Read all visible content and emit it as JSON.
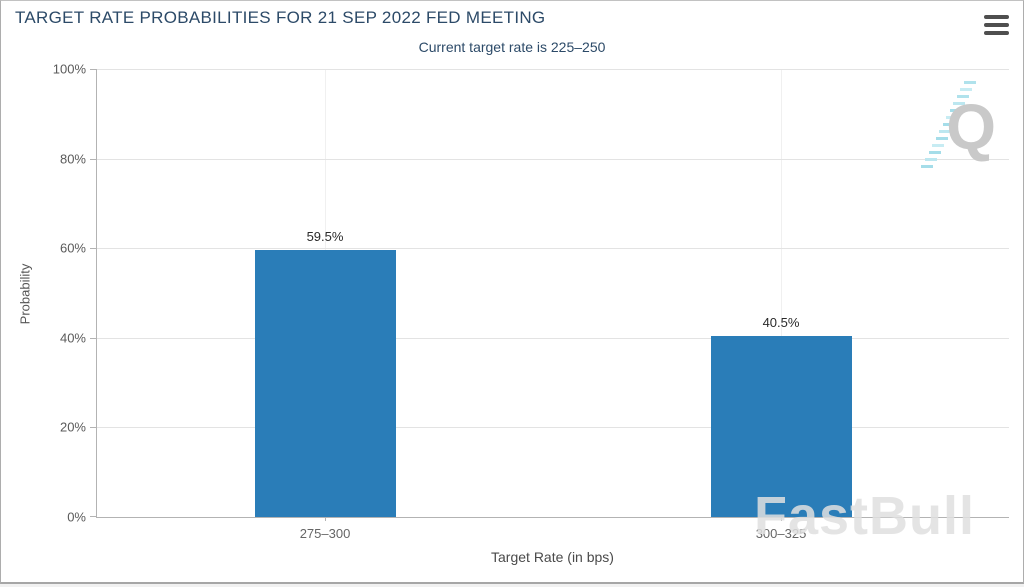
{
  "header": {
    "title": "TARGET RATE PROBABILITIES FOR 21 SEP 2022 FED MEETING",
    "subtitle": "Current target rate is 225–250"
  },
  "menu": {
    "icon": "hamburger-menu-icon"
  },
  "watermarks": {
    "quikstrike_letter": "Q",
    "brand": "FastBull"
  },
  "chart_data": {
    "type": "bar",
    "title": "TARGET RATE PROBABILITIES FOR 21 SEP 2022 FED MEETING",
    "subtitle": "Current target rate is 225–250",
    "categories": [
      "275–300",
      "300–325"
    ],
    "values": [
      59.5,
      40.5
    ],
    "value_labels": [
      "59.5%",
      "40.5%"
    ],
    "xlabel": "Target Rate (in bps)",
    "ylabel": "Probability",
    "ylim": [
      0,
      100
    ],
    "y_ticks": [
      0,
      20,
      40,
      60,
      80,
      100
    ],
    "y_tick_suffix": "%",
    "grid": true,
    "legend": "none",
    "bar_color": "#2a7db8"
  },
  "colors": {
    "title_text": "#2c4a68",
    "bar": "#2a7db8",
    "axis_line": "#b3b3b3",
    "gridline": "#e3e3e3",
    "tick_text": "#5a5a5a",
    "watermark_teal": "#a5dde9",
    "watermark_gray": "#c9c9c9"
  }
}
